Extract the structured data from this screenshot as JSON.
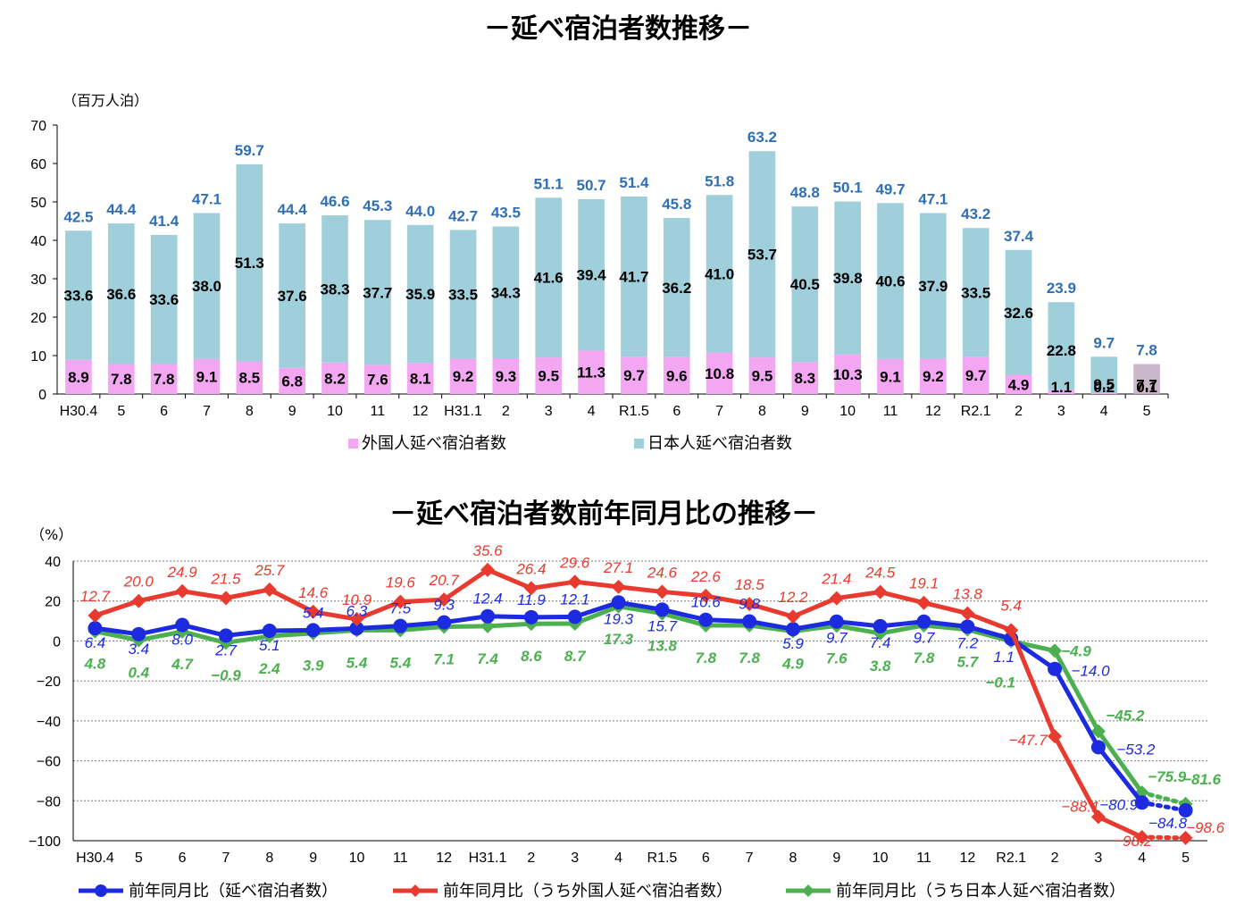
{
  "title1": "－延べ宿泊者数推移－",
  "title2": "－延べ宿泊者数前年同月比の推移－",
  "chart_data": [
    {
      "type": "bar",
      "stacked": true,
      "unit_label": "（百万人泊）",
      "categories": [
        "H30.4",
        "5",
        "6",
        "7",
        "8",
        "9",
        "10",
        "11",
        "12",
        "H31.1",
        "2",
        "3",
        "4",
        "R1.5",
        "6",
        "7",
        "8",
        "9",
        "10",
        "11",
        "12",
        "R2.1",
        "2",
        "3",
        "4",
        "5"
      ],
      "ylim": [
        0,
        70
      ],
      "yticks": [
        0,
        10,
        20,
        30,
        40,
        50,
        60,
        70
      ],
      "series": [
        {
          "name": "外国人延べ宿泊者数",
          "color": "#F3A6F1",
          "values": [
            8.9,
            7.8,
            7.8,
            9.1,
            8.5,
            6.8,
            8.2,
            7.6,
            8.1,
            9.2,
            9.3,
            9.5,
            11.3,
            9.7,
            9.6,
            10.8,
            9.5,
            8.3,
            10.3,
            9.1,
            9.2,
            9.7,
            4.9,
            1.1,
            0.2,
            0.1
          ]
        },
        {
          "name": "日本人延べ宿泊者数",
          "color": "#9ECFDA",
          "values": [
            33.6,
            36.6,
            33.6,
            38.0,
            51.3,
            37.6,
            38.3,
            37.7,
            35.9,
            33.5,
            34.3,
            41.6,
            39.4,
            41.7,
            36.2,
            41.0,
            53.7,
            40.5,
            39.8,
            40.6,
            37.9,
            33.5,
            32.6,
            22.8,
            9.5,
            7.7
          ]
        }
      ],
      "segment_labels_foreign": [
        "8.9",
        "7.8",
        "7.8",
        "9.1",
        "8.5",
        "6.8",
        "8.2",
        "7.6",
        "8.1",
        "9.2",
        "9.3",
        "9.5",
        "11.3",
        "9.7",
        "9.6",
        "10.8",
        "9.5",
        "8.3",
        "10.3",
        "9.1",
        "9.2",
        "9.7",
        "4.9",
        "1.1",
        "0.2",
        "0.1"
      ],
      "segment_labels_japanese": [
        "33.6",
        "36.6",
        "33.6",
        "38.0",
        "51.3",
        "37.6",
        "38.3",
        "37.7",
        "35.9",
        "33.5",
        "34.3",
        "41.6",
        "39.4",
        "41.7",
        "36.2",
        "41.0",
        "53.7",
        "40.5",
        "39.8",
        "40.6",
        "37.9",
        "33.5",
        "32.6",
        "22.8",
        "9.5",
        "7.7"
      ],
      "totals": [
        "42.5",
        "44.4",
        "41.4",
        "47.1",
        "59.7",
        "44.4",
        "46.6",
        "45.3",
        "44.0",
        "42.7",
        "43.5",
        "51.1",
        "50.7",
        "51.4",
        "45.8",
        "51.8",
        "63.2",
        "48.8",
        "50.1",
        "49.7",
        "47.1",
        "43.2",
        "37.4",
        "23.9",
        "9.7",
        "7.8"
      ],
      "last_bar_color": "#C9B8C9",
      "legend": [
        "外国人延べ宿泊者数",
        "日本人延べ宿泊者数"
      ],
      "legend_position": "bottom",
      "grid": false
    },
    {
      "type": "line",
      "unit_label": "（%）",
      "categories": [
        "H30.4",
        "5",
        "6",
        "7",
        "8",
        "9",
        "10",
        "11",
        "12",
        "H31.1",
        "2",
        "3",
        "4",
        "R1.5",
        "6",
        "7",
        "8",
        "9",
        "10",
        "11",
        "12",
        "R2.1",
        "2",
        "3",
        "4",
        "5"
      ],
      "ylim": [
        -100,
        40
      ],
      "yticks": [
        40,
        20,
        0,
        -20,
        -40,
        -60,
        -80,
        -100
      ],
      "grid": true,
      "series": [
        {
          "name": "前年同月比（延べ宿泊者数）",
          "color": "#1C2BE0",
          "values": [
            6.4,
            3.4,
            8.0,
            2.7,
            5.1,
            5.4,
            6.3,
            7.5,
            9.3,
            12.4,
            11.9,
            12.1,
            19.3,
            15.7,
            10.6,
            9.8,
            5.9,
            9.7,
            7.4,
            9.7,
            7.2,
            1.1,
            -14.0,
            -53.2,
            -80.9,
            -84.8
          ]
        },
        {
          "name": "前年同月比（うち外国人延べ宿泊者数）",
          "color": "#E83A2F",
          "values": [
            12.7,
            20.0,
            24.9,
            21.5,
            25.7,
            14.6,
            10.9,
            19.6,
            20.7,
            35.6,
            26.4,
            29.6,
            27.1,
            24.6,
            22.6,
            18.5,
            12.2,
            21.4,
            24.5,
            19.1,
            13.8,
            5.4,
            -47.7,
            -88.1,
            -98.2,
            -98.6
          ]
        },
        {
          "name": "前年同月比（うち日本人延べ宿泊者数）",
          "color": "#4CAF50",
          "values": [
            4.8,
            0.4,
            4.7,
            -0.9,
            2.4,
            3.9,
            5.4,
            5.4,
            7.1,
            7.4,
            8.6,
            8.7,
            17.3,
            13.8,
            7.8,
            7.8,
            4.9,
            7.6,
            3.8,
            7.8,
            5.7,
            -0.1,
            -4.9,
            -45.2,
            -75.9,
            -81.6
          ]
        }
      ],
      "labels": {
        "total": [
          "6.4",
          "3.4",
          "8.0",
          "2.7",
          "5.1",
          "5.4",
          "6.3",
          "7.5",
          "9.3",
          "12.4",
          "11.9",
          "12.1",
          "19.3",
          "15.7",
          "10.6",
          "9.8",
          "5.9",
          "9.7",
          "7.4",
          "9.7",
          "7.2",
          "1.1",
          "−14.0",
          "−53.2",
          "−80.9",
          "−84.8"
        ],
        "foreign": [
          "12.7",
          "20.0",
          "24.9",
          "21.5",
          "25.7",
          "14.6",
          "10.9",
          "19.6",
          "20.7",
          "35.6",
          "26.4",
          "29.6",
          "27.1",
          "24.6",
          "22.6",
          "18.5",
          "12.2",
          "21.4",
          "24.5",
          "19.1",
          "13.8",
          "5.4",
          "−47.7",
          "−88.1",
          "−98.2",
          "−98.6"
        ],
        "japanese": [
          "4.8",
          "0.4",
          "4.7",
          "−0.9",
          "2.4",
          "3.9",
          "5.4",
          "5.4",
          "7.1",
          "7.4",
          "8.6",
          "8.7",
          "17.3",
          "13.8",
          "7.8",
          "7.8",
          "4.9",
          "7.6",
          "3.8",
          "7.8",
          "5.7",
          "−0.1",
          "−4.9",
          "−45.2",
          "−75.9",
          "−81.6"
        ]
      },
      "ytick_labels": [
        "40",
        "20",
        "0",
        "−20",
        "−40",
        "−60",
        "−80",
        "−100"
      ],
      "legend": [
        "前年同月比（延べ宿泊者数）",
        "前年同月比（うち外国人延べ宿泊者数）",
        "前年同月比（うち日本人延べ宿泊者数）"
      ],
      "legend_position": "bottom",
      "last_segment_dotted": true
    }
  ]
}
